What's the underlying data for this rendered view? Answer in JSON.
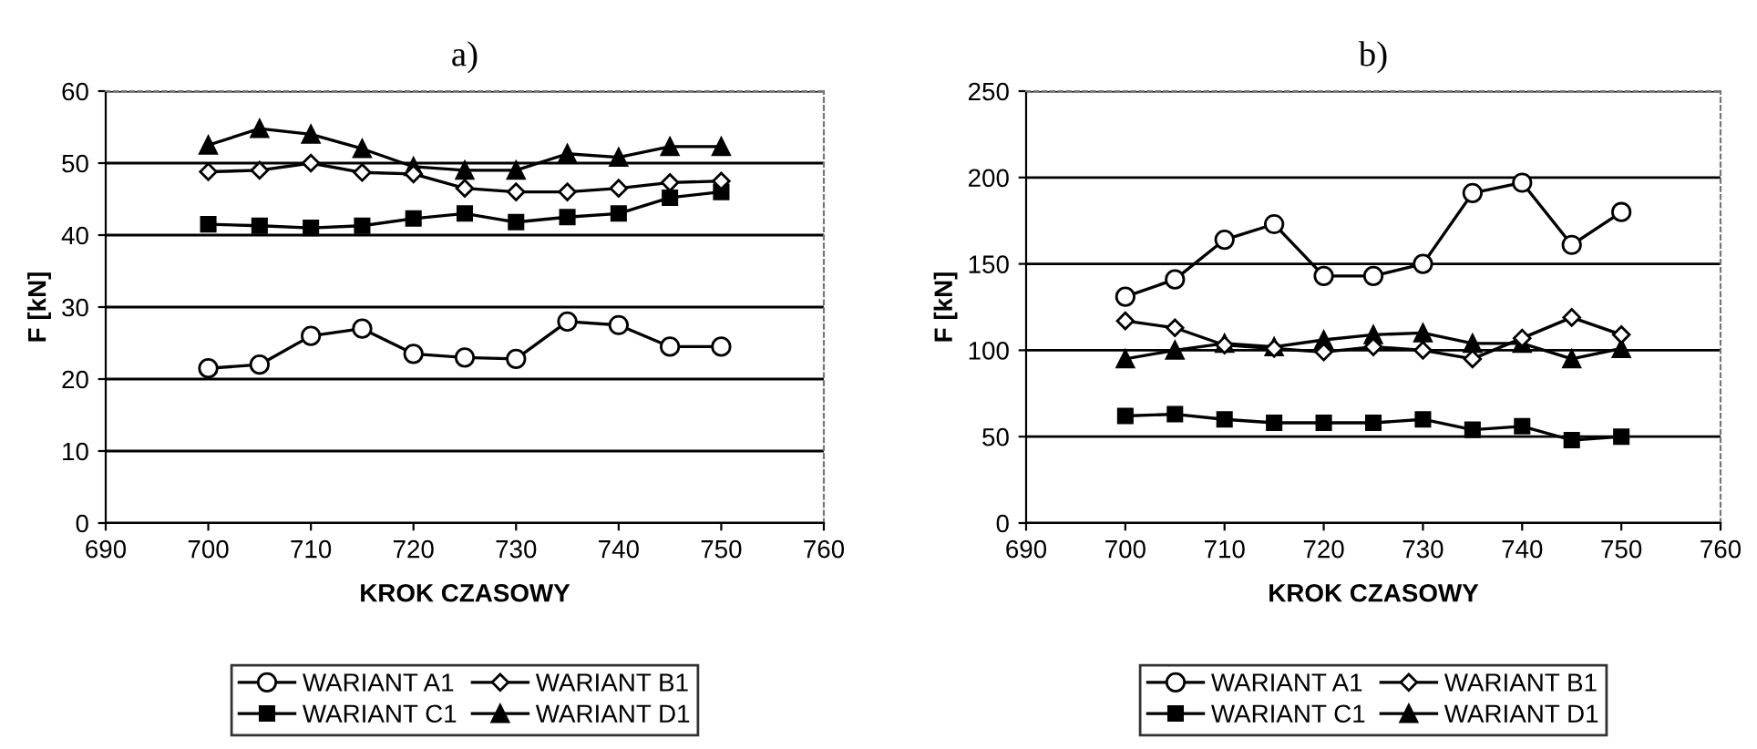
{
  "chart_data": [
    {
      "type": "line",
      "title": "a)",
      "xlabel": "KROK CZASOWY",
      "ylabel": "F [kN]",
      "x": [
        700,
        705,
        710,
        715,
        720,
        725,
        730,
        735,
        740,
        745,
        750
      ],
      "xlim": [
        690,
        760
      ],
      "xticks": [
        690,
        700,
        710,
        720,
        730,
        740,
        750,
        760
      ],
      "ylim": [
        0,
        60
      ],
      "yticks": [
        0,
        10,
        20,
        30,
        40,
        50,
        60
      ],
      "grid": "y",
      "legend": "bottom",
      "line_style": "solid",
      "series": [
        {
          "name": "WARIANT A1",
          "color": "#000000",
          "marker": "circle",
          "values": [
            21.5,
            22,
            26,
            27,
            23.5,
            23,
            22.8,
            28,
            27.5,
            24.5,
            24.5
          ]
        },
        {
          "name": "WARIANT B1",
          "color": "#000000",
          "marker": "diamond",
          "values": [
            48.8,
            49,
            50,
            48.7,
            48.5,
            46.5,
            46,
            46,
            46.5,
            47.3,
            47.5
          ]
        },
        {
          "name": "WARIANT C1",
          "color": "#000000",
          "marker": "square",
          "values": [
            41.5,
            41.3,
            41,
            41.3,
            42.3,
            43,
            41.8,
            42.5,
            43,
            45.2,
            46
          ]
        },
        {
          "name": "WARIANT D1",
          "color": "#000000",
          "marker": "triangle",
          "values": [
            52.5,
            54.8,
            54,
            52,
            49.5,
            49,
            49,
            51.3,
            50.8,
            52.3,
            52.3
          ]
        }
      ]
    },
    {
      "type": "line",
      "title": "b)",
      "xlabel": "KROK CZASOWY",
      "ylabel": "F [kN]",
      "x": [
        700,
        705,
        710,
        715,
        720,
        725,
        730,
        735,
        740,
        745,
        750
      ],
      "xlim": [
        690,
        760
      ],
      "xticks": [
        690,
        700,
        710,
        720,
        730,
        740,
        750,
        760
      ],
      "ylim": [
        0,
        250
      ],
      "yticks": [
        0,
        50,
        100,
        150,
        200,
        250
      ],
      "grid": "y",
      "legend": "bottom",
      "line_style": "solid",
      "series": [
        {
          "name": "WARIANT A1",
          "color": "#000000",
          "marker": "circle",
          "values": [
            131,
            141,
            164,
            173,
            143,
            143,
            150,
            191,
            197,
            161,
            180
          ]
        },
        {
          "name": "WARIANT B1",
          "color": "#000000",
          "marker": "diamond",
          "values": [
            117,
            113,
            103,
            101,
            99,
            102,
            100,
            95,
            107,
            119,
            109
          ]
        },
        {
          "name": "WARIANT C1",
          "color": "#000000",
          "marker": "square",
          "values": [
            62,
            63,
            60,
            58,
            58,
            58,
            60,
            54,
            56,
            48,
            50
          ]
        },
        {
          "name": "WARIANT D1",
          "color": "#000000",
          "marker": "triangle",
          "values": [
            95,
            100,
            104,
            102,
            106,
            109,
            110,
            104,
            104,
            95,
            101
          ]
        }
      ]
    }
  ]
}
